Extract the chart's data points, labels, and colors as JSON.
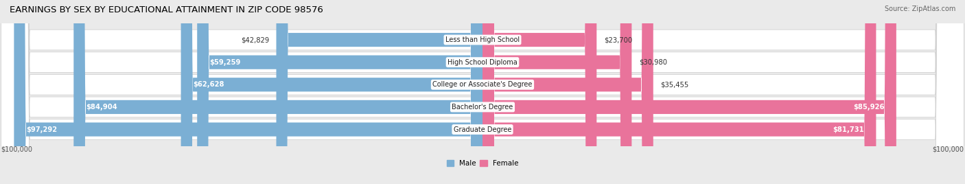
{
  "title": "EARNINGS BY SEX BY EDUCATIONAL ATTAINMENT IN ZIP CODE 98576",
  "source": "Source: ZipAtlas.com",
  "categories": [
    "Less than High School",
    "High School Diploma",
    "College or Associate's Degree",
    "Bachelor's Degree",
    "Graduate Degree"
  ],
  "male_values": [
    42829,
    59259,
    62628,
    84904,
    97292
  ],
  "female_values": [
    23700,
    30980,
    35455,
    85926,
    81731
  ],
  "male_labels": [
    "$42,829",
    "$59,259",
    "$62,628",
    "$84,904",
    "$97,292"
  ],
  "female_labels": [
    "$23,700",
    "$30,980",
    "$35,455",
    "$85,926",
    "$81,731"
  ],
  "max_val": 100000,
  "male_color": "#7bafd4",
  "female_color": "#e9739b",
  "bg_color": "#eaeaea",
  "row_bg_color": "#f5f5f5",
  "row_shadow_color": "#d0d0d0",
  "title_fontsize": 9.5,
  "label_fontsize": 7.2,
  "cat_fontsize": 7.0,
  "axis_label": "$100,000",
  "legend_male": "Male",
  "legend_female": "Female",
  "male_label_threshold": 55000,
  "female_label_threshold": 55000
}
